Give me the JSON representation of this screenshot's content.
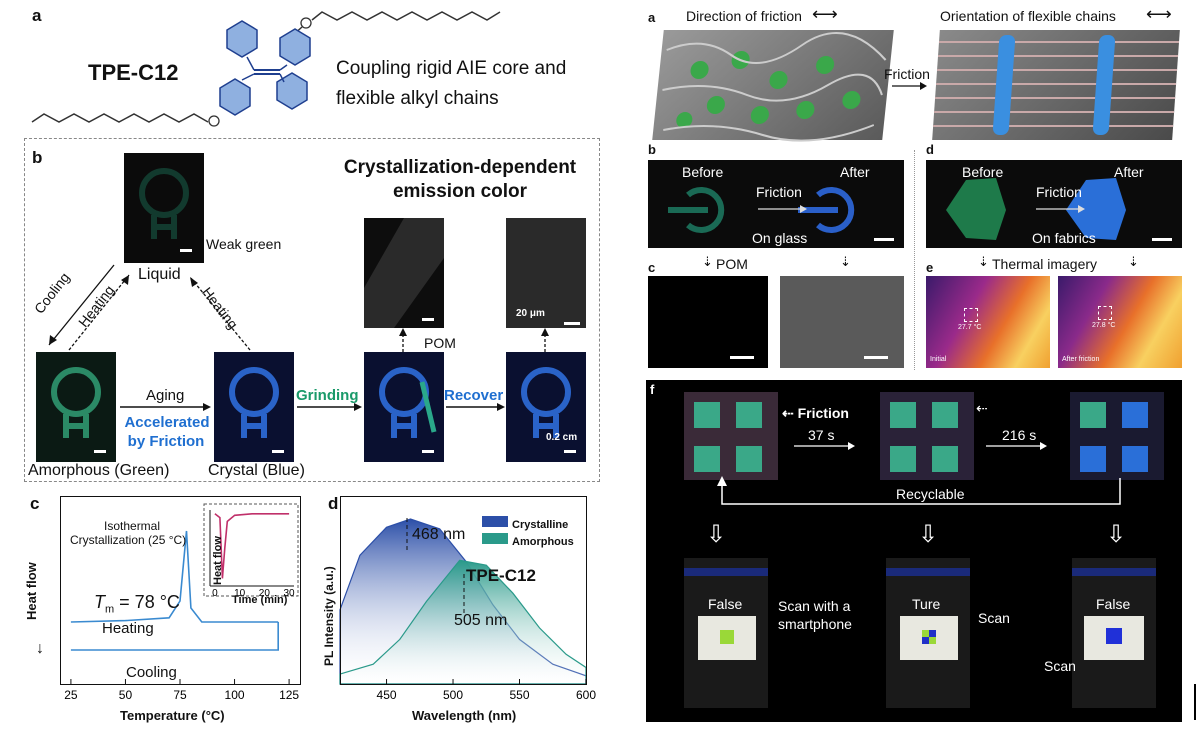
{
  "left": {
    "panel_a": {
      "label": "a",
      "compound": "TPE-C12",
      "description_line1": "Coupling rigid AIE core and",
      "description_line2": "flexible alkyl chains"
    },
    "panel_b": {
      "label": "b",
      "title_line1": "Crystallization-dependent",
      "title_line2": "emission color",
      "weak_green": "Weak green",
      "liquid": "Liquid",
      "cooling": "Cooling",
      "heating_left": "Heating",
      "heating_right": "Heating",
      "aging": "Aging",
      "accelerated_line1": "Accelerated",
      "accelerated_line2": "by Friction",
      "amorphous": "Amorphous  (Green)",
      "crystal": "Crystal  (Blue)",
      "grinding": "Grinding",
      "recover": "Recover",
      "pom": "POM",
      "scale_20um": "20 μm",
      "scale_02cm": "0.2 cm"
    },
    "panel_c": {
      "label": "c",
      "ylabel": "Heat flow",
      "xlabel": "Temperature (°C)",
      "tm_label_T": "T",
      "tm_label_rest": " = 78 °C",
      "tm_sub": "m",
      "heating": "Heating",
      "cooling": "Cooling",
      "iso_line1": "Isothermal",
      "iso_line2": "Crystallization (25 °C)",
      "inset_ylabel": "Heat flow",
      "inset_xlabel": "Time (min)",
      "xticks": [
        "25",
        "50",
        "75",
        "100",
        "125"
      ],
      "inset_xticks": [
        "0",
        "10",
        "20",
        "30"
      ]
    },
    "panel_d": {
      "label": "d",
      "ylabel": "PL Intensity (a.u.)",
      "xlabel": "Wavelength (nm)",
      "compound": "TPE-C12",
      "peak1": "468 nm",
      "peak2": "505 nm",
      "legend1": "Crystalline",
      "legend2": "Amorphous",
      "xticks": [
        "450",
        "500",
        "550",
        "600"
      ]
    }
  },
  "right": {
    "panel_a": {
      "label": "a",
      "dir_friction": "Direction of friction",
      "orientation": "Orientation of flexible chains",
      "friction": "Friction"
    },
    "panel_b": {
      "label": "b",
      "before": "Before",
      "after": "After",
      "friction": "Friction",
      "substrate": "On glass"
    },
    "panel_c": {
      "label": "c",
      "pom": "POM"
    },
    "panel_d": {
      "label": "d",
      "before": "Before",
      "after": "After",
      "friction": "Friction",
      "substrate": "On fabrics"
    },
    "panel_e": {
      "label": "e",
      "thermal": "Thermal imagery",
      "temp1": "27.7 °C",
      "temp2": "27.8 °C",
      "initial": "Initial",
      "after_friction": "After friction"
    },
    "panel_f": {
      "label": "f",
      "friction": "Friction",
      "t1": "37 s",
      "t2": "216 s",
      "recyclable": "Recyclable",
      "false1": "False",
      "ture": "Ture",
      "false2": "False",
      "scan_smartphone_line1": "Scan with a",
      "scan_smartphone_line2": "smartphone",
      "scan1": "Scan",
      "scan2": "Scan"
    }
  },
  "colors": {
    "green_emission": "#1f7a5c",
    "blue_emission": "#1f5fc8",
    "accent_green_text": "#1a9a6a",
    "accent_blue_text": "#1f6fd0",
    "crystalline_curve": "#2c4fa8",
    "amorphous_curve": "#2a9a8a",
    "dsc_heating": "#3a8ad0",
    "inset_curve": "#c0306a"
  },
  "chart_data": [
    {
      "type": "line",
      "title": "",
      "xlabel": "Temperature (°C)",
      "ylabel": "Heat flow",
      "xlim": [
        20,
        130
      ],
      "series": [
        {
          "name": "Heating",
          "x": [
            25,
            50,
            70,
            75,
            78,
            80,
            85,
            120
          ],
          "y": [
            0.3,
            0.31,
            0.33,
            0.45,
            0.95,
            0.4,
            0.3,
            0.3
          ]
        },
        {
          "name": "Cooling",
          "x": [
            25,
            50,
            75,
            100,
            120
          ],
          "y": [
            0.1,
            0.1,
            0.1,
            0.1,
            0.1
          ]
        }
      ]
    },
    {
      "type": "line",
      "title": "",
      "xlabel": "Time (min)",
      "ylabel": "Heat flow",
      "xlim": [
        -2,
        32
      ],
      "series": [
        {
          "name": "",
          "x": [
            0,
            2,
            3,
            4,
            5,
            8,
            15,
            30
          ],
          "y": [
            0.95,
            0.9,
            0.1,
            0.5,
            0.85,
            0.93,
            0.95,
            0.95
          ]
        }
      ]
    },
    {
      "type": "area",
      "title": "",
      "xlabel": "Wavelength (nm)",
      "ylabel": "PL Intensity (a.u.)",
      "xlim": [
        415,
        600
      ],
      "series": [
        {
          "name": "Crystalline",
          "x": [
            415,
            430,
            450,
            468,
            490,
            510,
            530,
            550,
            575,
            600
          ],
          "y": [
            0.45,
            0.78,
            0.95,
            1.0,
            0.94,
            0.74,
            0.48,
            0.27,
            0.12,
            0.05
          ]
        },
        {
          "name": "Amorphous",
          "x": [
            415,
            440,
            460,
            480,
            505,
            525,
            545,
            565,
            585,
            600
          ],
          "y": [
            0.06,
            0.12,
            0.27,
            0.5,
            0.75,
            0.72,
            0.55,
            0.34,
            0.18,
            0.1
          ]
        }
      ]
    }
  ]
}
